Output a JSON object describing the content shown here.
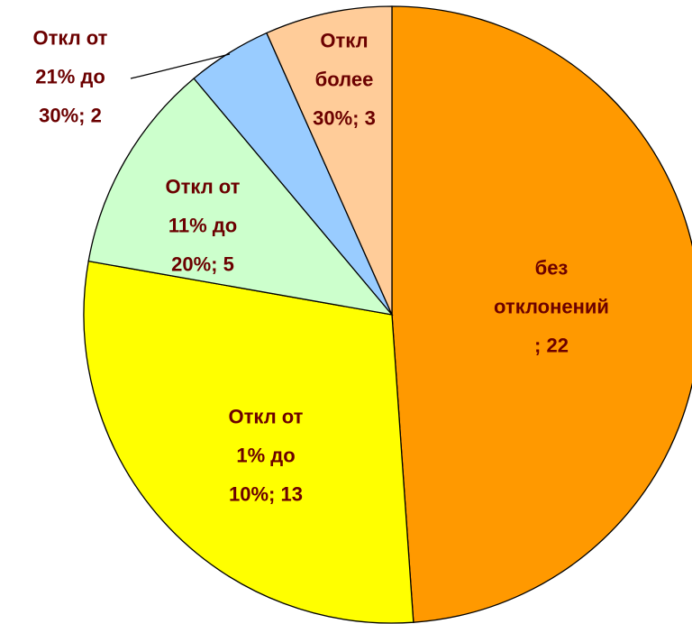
{
  "chart_data": {
    "type": "pie",
    "values": [
      22,
      13,
      5,
      2,
      3
    ],
    "value_labels": [
      "без отклонений; 22",
      "Откл от 1% до 10%; 13",
      "Откл от 11% до 20%; 5",
      "Откл от 21% до 30%; 2",
      "Откл более 30%; 3"
    ],
    "colors": [
      "#ff9900",
      "#ffff00",
      "#ccffcc",
      "#99ccff",
      "#ffcc99"
    ],
    "start_angle": 0,
    "direction": "clockwise"
  }
}
